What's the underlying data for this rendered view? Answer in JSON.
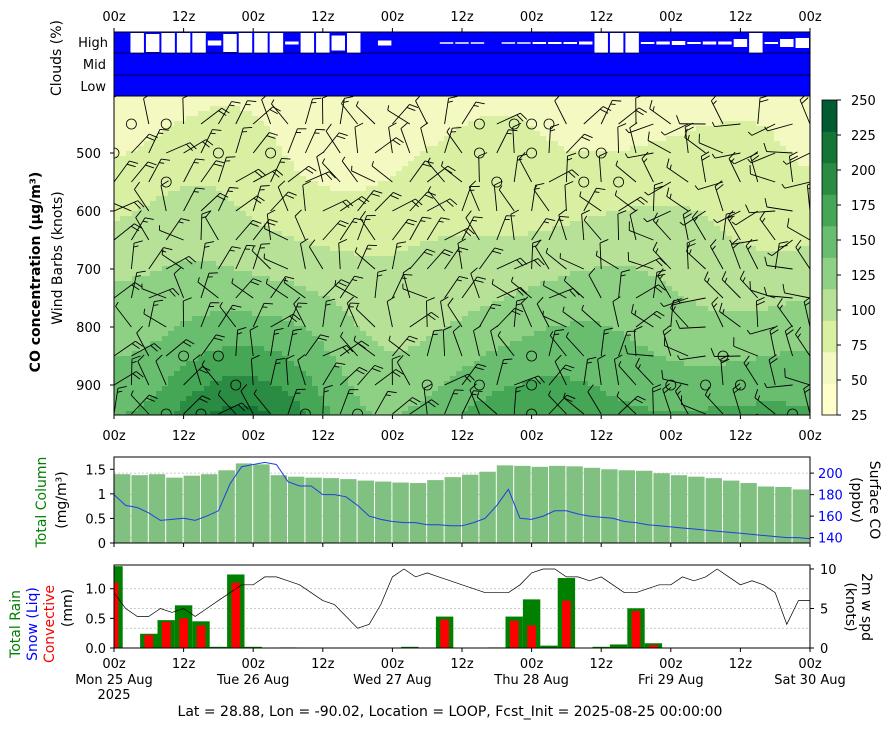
{
  "chart_data": [
    {
      "type": "heatmap",
      "panel": "clouds-co-wind",
      "time_tick_labels": [
        "00z",
        "12z",
        "00z",
        "12z",
        "00z",
        "12z",
        "00z",
        "12z",
        "00z",
        "12z",
        "00z"
      ],
      "time_range_hours": [
        0,
        120
      ],
      "cloud_level_labels": [
        "High",
        "Mid",
        "Low"
      ],
      "cloud_axis_label": "Clouds (%)",
      "ylabel_bold": "CO concentration (μg/m³)",
      "ylabel": "Wind Barbs (knots)",
      "pressure_ticks": [
        500,
        600,
        700,
        800,
        900
      ],
      "ylim": [
        955,
        270
      ],
      "colorbar_ticks": [
        25,
        50,
        75,
        100,
        125,
        150,
        175,
        200,
        225,
        250
      ],
      "colorbar_colors": [
        "#ffffcc",
        "#f3f9c0",
        "#d9f0a3",
        "#b6e196",
        "#8fd184",
        "#69bd6e",
        "#45a655",
        "#2a8b43",
        "#137637",
        "#005a32"
      ],
      "cloud_high_pct": [
        0,
        20,
        18,
        20,
        20,
        20,
        5,
        18,
        20,
        20,
        20,
        3,
        20,
        20,
        15,
        20,
        0,
        5,
        0,
        0,
        0,
        1,
        1,
        1,
        0,
        1,
        1,
        2,
        2,
        2,
        3,
        20,
        20,
        20,
        2,
        3,
        4,
        2,
        3,
        3,
        8,
        20,
        2,
        8,
        10
      ],
      "co_surface_field": "CO increases from ~60 μg/m³ aloft (500 hPa) to 150-225 μg/m³ near the surface; maximum ~225 near 00z Tue 26 Aug"
    },
    {
      "type": "bar",
      "panel": "total-column",
      "ylabel_left": "Total Column",
      "ylabel_left_unit": "(mg/m³)",
      "ylabel_right": "Surface CO",
      "ylabel_right_unit": "(ppbv)",
      "left_ticks": [
        "0",
        "0.5",
        "1",
        "1.5"
      ],
      "right_ticks": [
        "140",
        "160",
        "180",
        "200"
      ],
      "ylim": [
        0,
        1.75
      ],
      "ylim_right": [
        135,
        215
      ],
      "bar_hours": [
        0,
        3,
        6,
        9,
        12,
        15,
        18,
        21,
        24,
        27,
        30,
        33,
        36,
        39,
        42,
        45,
        48,
        51,
        54,
        57,
        60,
        63,
        66,
        69,
        72,
        75,
        78,
        81,
        84,
        87,
        90,
        93,
        96,
        99,
        102,
        105,
        108,
        111,
        114,
        117
      ],
      "total_column": [
        1.4,
        1.38,
        1.4,
        1.33,
        1.37,
        1.4,
        1.48,
        1.62,
        1.6,
        1.38,
        1.35,
        1.33,
        1.32,
        1.3,
        1.27,
        1.25,
        1.23,
        1.22,
        1.28,
        1.34,
        1.39,
        1.45,
        1.58,
        1.57,
        1.55,
        1.57,
        1.56,
        1.53,
        1.5,
        1.48,
        1.47,
        1.42,
        1.38,
        1.35,
        1.32,
        1.27,
        1.22,
        1.15,
        1.14,
        1.09
      ],
      "surface_co_hours": [
        0,
        2,
        4,
        6,
        8,
        10,
        12,
        14,
        16,
        18,
        20,
        22,
        24,
        26,
        28,
        30,
        32,
        34,
        36,
        38,
        40,
        42,
        44,
        46,
        48,
        50,
        52,
        54,
        56,
        58,
        60,
        62,
        64,
        66,
        68,
        70,
        72,
        74,
        76,
        78,
        80,
        82,
        84,
        86,
        88,
        90,
        92,
        94,
        96,
        98,
        100,
        102,
        104,
        106,
        108,
        110,
        112,
        114,
        116,
        118,
        120
      ],
      "surface_co_ppbv": [
        180,
        170,
        168,
        163,
        156,
        157,
        158,
        156,
        160,
        165,
        190,
        206,
        208,
        210,
        208,
        192,
        188,
        188,
        180,
        180,
        178,
        170,
        160,
        157,
        155,
        154,
        154,
        152,
        152,
        151,
        151,
        154,
        158,
        170,
        185,
        158,
        157,
        160,
        165,
        165,
        162,
        160,
        159,
        158,
        155,
        154,
        152,
        151,
        150,
        149,
        148,
        147,
        146,
        145,
        144,
        143,
        142,
        141,
        140,
        140,
        139
      ]
    },
    {
      "type": "bar",
      "panel": "precipitation",
      "ylabel_lines": [
        "Total Rain",
        "Snow (Liq)",
        "Convective",
        "(mm)"
      ],
      "ylabel_right": "2m w spd",
      "ylabel_right_unit": "(knots)",
      "left_ticks": [
        "0.0",
        "0.5",
        "1.0"
      ],
      "right_ticks": [
        "0",
        "5",
        "10"
      ],
      "ylim": [
        0,
        1.4
      ],
      "ylim_right": [
        0,
        10.5
      ],
      "x_ticks": [
        "00z",
        "12z",
        "00z",
        "12z",
        "00z",
        "12z",
        "00z",
        "12z",
        "00z",
        "12z",
        "00z"
      ],
      "day_labels": [
        "Mon 25 Aug",
        "Tue 26 Aug",
        "Wed 27 Aug",
        "Thu 28 Aug",
        "Fri 29 Aug",
        "Sat 30 Aug"
      ],
      "year_label": "2025",
      "rain_hours": [
        0,
        6,
        9,
        12,
        15,
        18,
        21,
        24,
        30,
        51,
        57,
        66,
        69,
        72,
        75,
        78,
        84,
        87,
        90,
        93
      ],
      "total_rain": [
        1.38,
        0.24,
        0.47,
        0.72,
        0.45,
        0.02,
        1.24,
        0.02,
        0.01,
        0.02,
        0.53,
        0.01,
        0.53,
        0.82,
        0.04,
        1.18,
        0.02,
        0.06,
        0.67,
        0.08
      ],
      "convective": [
        1.1,
        0.22,
        0.44,
        0.5,
        0.38,
        0.0,
        1.1,
        0.0,
        0.0,
        0.0,
        0.48,
        0.0,
        0.46,
        0.38,
        0.0,
        0.8,
        0.0,
        0.0,
        0.62,
        0.05
      ],
      "wind_hours": [
        0,
        2,
        4,
        6,
        8,
        10,
        12,
        14,
        16,
        18,
        20,
        22,
        24,
        26,
        28,
        30,
        32,
        34,
        36,
        38,
        40,
        42,
        44,
        46,
        48,
        50,
        52,
        54,
        56,
        58,
        60,
        62,
        64,
        66,
        68,
        70,
        72,
        74,
        76,
        78,
        80,
        82,
        84,
        86,
        88,
        90,
        92,
        94,
        96,
        98,
        100,
        102,
        104,
        106,
        108,
        110,
        112,
        114,
        116,
        118,
        120
      ],
      "wind_knots": [
        7,
        5,
        4,
        4,
        5,
        4.5,
        5,
        4,
        5,
        6,
        7,
        8,
        8,
        9,
        9,
        8.5,
        8,
        7,
        6,
        5.5,
        4,
        2.5,
        3,
        5.5,
        9,
        10,
        9,
        9.5,
        9,
        8.5,
        8,
        7.5,
        7,
        7,
        7,
        8,
        9.5,
        10,
        10,
        9,
        9,
        8.5,
        9,
        8,
        7,
        7,
        7.5,
        8,
        8,
        9,
        8.5,
        9,
        10,
        9,
        8,
        8.5,
        8,
        7,
        3,
        6,
        6
      ]
    }
  ],
  "footer": {
    "info": "Lat = 28.88, Lon = -90.02, Location = LOOP, Fcst_Init = 2025-08-25 00:00:00"
  },
  "colors": {
    "cloud": "#0000ff",
    "column_bar": "#80c080",
    "surface_co_line": "#2040e0",
    "rain": "#008000",
    "convective": "#ff0000",
    "snow_label": "#0000ff",
    "wind_line": "#000000"
  }
}
